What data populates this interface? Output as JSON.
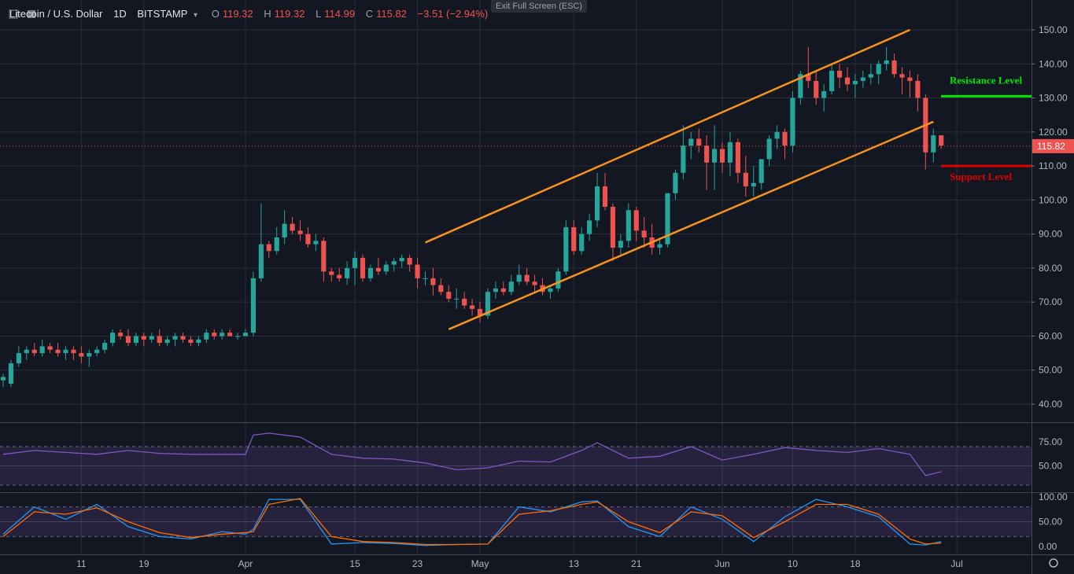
{
  "header": {
    "symbol": "Litecoin / U.S. Dollar",
    "interval": "1D",
    "exchange": "BITSTAMP",
    "open_label": "O",
    "open": "119.32",
    "high_label": "H",
    "high": "119.32",
    "low_label": "L",
    "low": "114.99",
    "close_label": "C",
    "close": "115.82",
    "change": "−3.51 (−2.94%)",
    "exit_fullscreen": "Exit Full Screen (ESC)"
  },
  "colors": {
    "background": "#131722",
    "up": "#26a69a",
    "down": "#ef5350",
    "channel": "#f7931a",
    "resistance": "#00e600",
    "support": "#e00000",
    "rsi": "#7e57c2",
    "stoch_k": "#2196f3",
    "stoch_d": "#ff6d00"
  },
  "chart_data": [
    {
      "type": "candlestick",
      "title": "",
      "price_axis": [
        "150.00",
        "140.00",
        "130.00",
        "120.00",
        "110.00",
        "100.00",
        "90.00",
        "80.00",
        "70.00",
        "60.00",
        "50.00",
        "40.00"
      ],
      "ylim": [
        32,
        155
      ],
      "last_price": "115.82",
      "x_labels": [
        "11",
        "19",
        "Apr",
        "15",
        "23",
        "May",
        "13",
        "21",
        "Jun",
        "10",
        "18",
        "Jul"
      ],
      "x_label_days": [
        10,
        18,
        31,
        45,
        53,
        61,
        73,
        81,
        92,
        101,
        109,
        122
      ],
      "day_range": [
        0,
        129
      ],
      "candles": [
        [
          0,
          47,
          49,
          45,
          48
        ],
        [
          1,
          46,
          53,
          45,
          52
        ],
        [
          2,
          52,
          57,
          51,
          55
        ],
        [
          3,
          55,
          57,
          53,
          56
        ],
        [
          4,
          56,
          58,
          54,
          55
        ],
        [
          5,
          55,
          59,
          54,
          57
        ],
        [
          6,
          57,
          58,
          55,
          56
        ],
        [
          7,
          56,
          58,
          54,
          55
        ],
        [
          8,
          55,
          57,
          53,
          56
        ],
        [
          9,
          56,
          57,
          53,
          55
        ],
        [
          10,
          55,
          57,
          52,
          54
        ],
        [
          11,
          54,
          56,
          51,
          55
        ],
        [
          12,
          55,
          57,
          54,
          56
        ],
        [
          13,
          56,
          59,
          55,
          58
        ],
        [
          14,
          58,
          62,
          57,
          61
        ],
        [
          15,
          61,
          62,
          59,
          60
        ],
        [
          16,
          60,
          62,
          57,
          58
        ],
        [
          17,
          58,
          61,
          57,
          60
        ],
        [
          18,
          60,
          61,
          57,
          59
        ],
        [
          19,
          59,
          61,
          58,
          60
        ],
        [
          20,
          60,
          62,
          57,
          58
        ],
        [
          21,
          58,
          60,
          57,
          59
        ],
        [
          22,
          59,
          61,
          57,
          60
        ],
        [
          23,
          60,
          61,
          58,
          59
        ],
        [
          24,
          59,
          60,
          57,
          58
        ],
        [
          25,
          58,
          60,
          57,
          59
        ],
        [
          26,
          59,
          62,
          58,
          61
        ],
        [
          27,
          61,
          62,
          59,
          60
        ],
        [
          28,
          60,
          62,
          59,
          61
        ],
        [
          29,
          61,
          62,
          60,
          60
        ],
        [
          30,
          60,
          61,
          59,
          60
        ],
        [
          31,
          60,
          62,
          60,
          61
        ],
        [
          32,
          61,
          79,
          60,
          77
        ],
        [
          33,
          77,
          99,
          76,
          87
        ],
        [
          34,
          87,
          88,
          83,
          85
        ],
        [
          35,
          85,
          92,
          84,
          89
        ],
        [
          36,
          89,
          97,
          87,
          93
        ],
        [
          37,
          93,
          95,
          90,
          91
        ],
        [
          38,
          91,
          94,
          88,
          90
        ],
        [
          39,
          90,
          92,
          86,
          87
        ],
        [
          40,
          87,
          90,
          85,
          88
        ],
        [
          41,
          88,
          89,
          76,
          79
        ],
        [
          42,
          79,
          80,
          76,
          78
        ],
        [
          43,
          78,
          80,
          76,
          77
        ],
        [
          44,
          77,
          82,
          75,
          80
        ],
        [
          45,
          80,
          85,
          75,
          83
        ],
        [
          46,
          83,
          84,
          76,
          77
        ],
        [
          47,
          77,
          81,
          76,
          80
        ],
        [
          48,
          80,
          83,
          78,
          79
        ],
        [
          49,
          79,
          82,
          78,
          81
        ],
        [
          50,
          81,
          83,
          79,
          82
        ],
        [
          51,
          82,
          84,
          80,
          83
        ],
        [
          52,
          83,
          84,
          79,
          81
        ],
        [
          53,
          81,
          83,
          74,
          77
        ],
        [
          54,
          77,
          79,
          75,
          77
        ],
        [
          55,
          77,
          80,
          72,
          75
        ],
        [
          56,
          75,
          77,
          72,
          73
        ],
        [
          57,
          73,
          75,
          70,
          71
        ],
        [
          58,
          71,
          74,
          68,
          71
        ],
        [
          59,
          71,
          73,
          68,
          69
        ],
        [
          60,
          69,
          71,
          66,
          68
        ],
        [
          61,
          68,
          70,
          64,
          66
        ],
        [
          62,
          66,
          74,
          65,
          73
        ],
        [
          63,
          73,
          76,
          71,
          74
        ],
        [
          64,
          74,
          76,
          72,
          73
        ],
        [
          65,
          73,
          78,
          72,
          76
        ],
        [
          66,
          76,
          81,
          75,
          78
        ],
        [
          67,
          78,
          80,
          75,
          76
        ],
        [
          68,
          76,
          78,
          73,
          75
        ],
        [
          69,
          75,
          77,
          72,
          73
        ],
        [
          70,
          73,
          75,
          71,
          74
        ],
        [
          71,
          74,
          80,
          73,
          79
        ],
        [
          72,
          79,
          94,
          78,
          92
        ],
        [
          73,
          92,
          94,
          84,
          85
        ],
        [
          74,
          85,
          92,
          84,
          90
        ],
        [
          75,
          90,
          96,
          88,
          94
        ],
        [
          76,
          94,
          108,
          92,
          104
        ],
        [
          77,
          104,
          108,
          97,
          98
        ],
        [
          78,
          98,
          99,
          82,
          86
        ],
        [
          79,
          86,
          90,
          84,
          88
        ],
        [
          80,
          88,
          99,
          86,
          97
        ],
        [
          81,
          97,
          98,
          88,
          91
        ],
        [
          82,
          91,
          95,
          86,
          89
        ],
        [
          83,
          89,
          93,
          84,
          86
        ],
        [
          84,
          86,
          89,
          84,
          87
        ],
        [
          85,
          87,
          101,
          86,
          102
        ],
        [
          86,
          102,
          109,
          100,
          108
        ],
        [
          87,
          108,
          122,
          106,
          116
        ],
        [
          88,
          116,
          120,
          112,
          118
        ],
        [
          89,
          118,
          121,
          114,
          116
        ],
        [
          90,
          116,
          119,
          103,
          111
        ],
        [
          91,
          111,
          122,
          103,
          115
        ],
        [
          92,
          115,
          117,
          108,
          111
        ],
        [
          93,
          111,
          120,
          107,
          117
        ],
        [
          94,
          117,
          118,
          105,
          108
        ],
        [
          95,
          108,
          113,
          101,
          104
        ],
        [
          96,
          104,
          110,
          101,
          105
        ],
        [
          97,
          105,
          112,
          103,
          112
        ],
        [
          98,
          112,
          119,
          110,
          118
        ],
        [
          99,
          118,
          122,
          115,
          120
        ],
        [
          100,
          120,
          121,
          112,
          116
        ],
        [
          101,
          116,
          132,
          114,
          130
        ],
        [
          102,
          130,
          138,
          128,
          137
        ],
        [
          103,
          137,
          145,
          133,
          135
        ],
        [
          104,
          135,
          138,
          128,
          130
        ],
        [
          105,
          130,
          134,
          126,
          132
        ],
        [
          106,
          132,
          140,
          131,
          138
        ],
        [
          107,
          138,
          140,
          133,
          136
        ],
        [
          108,
          136,
          139,
          132,
          134
        ],
        [
          109,
          134,
          137,
          130,
          135
        ],
        [
          110,
          135,
          138,
          133,
          136
        ],
        [
          111,
          136,
          140,
          134,
          137
        ],
        [
          112,
          137,
          141,
          134,
          140
        ],
        [
          113,
          140,
          145,
          138,
          141
        ],
        [
          114,
          141,
          143,
          136,
          137
        ],
        [
          115,
          137,
          139,
          131,
          136
        ],
        [
          116,
          136,
          138,
          130,
          135
        ],
        [
          117,
          135,
          137,
          126,
          130
        ],
        [
          118,
          130,
          131,
          109,
          114
        ],
        [
          119,
          114,
          121,
          111,
          119
        ],
        [
          120,
          119,
          119,
          115,
          116
        ]
      ],
      "annotations": [
        {
          "text": "Resistance Level",
          "price": 130.5,
          "day_range": [
            119,
            129
          ],
          "color": "#00e600"
        },
        {
          "text": "Support Level",
          "price": 110,
          "day_range": [
            119,
            129
          ],
          "color": "#e00000"
        }
      ],
      "channel": {
        "upper": [
          [
            54,
            87.5
          ],
          [
            116,
            150
          ]
        ],
        "lower": [
          [
            57,
            62
          ],
          [
            119,
            123
          ]
        ]
      }
    },
    {
      "type": "line",
      "title": "",
      "y_ticks": [
        "75.00",
        "50.00"
      ],
      "ylim": [
        20,
        90
      ],
      "bands": [
        30,
        50,
        70
      ],
      "series": [
        {
          "color": "#7e57c2",
          "x": [
            0,
            4,
            8,
            12,
            16,
            20,
            24,
            28,
            31,
            32,
            34,
            38,
            42,
            46,
            50,
            54,
            58,
            62,
            66,
            70,
            74,
            76,
            80,
            84,
            88,
            92,
            96,
            100,
            104,
            108,
            112,
            116,
            118,
            120
          ],
          "values": [
            62,
            66,
            64,
            62,
            66,
            63,
            62,
            62,
            62,
            82,
            84,
            80,
            62,
            58,
            57,
            53,
            46,
            48,
            55,
            54,
            66,
            74,
            58,
            60,
            70,
            56,
            62,
            69,
            66,
            64,
            68,
            62,
            40,
            44
          ]
        }
      ]
    },
    {
      "type": "line",
      "title": "",
      "y_ticks": [
        "100.00",
        "50.00",
        "0.00"
      ],
      "ylim": [
        -5,
        105
      ],
      "bands": [
        20,
        50,
        80
      ],
      "series": [
        {
          "color": "#2196f3",
          "x": [
            0,
            4,
            8,
            12,
            16,
            20,
            24,
            28,
            31,
            32,
            34,
            38,
            42,
            46,
            50,
            54,
            58,
            62,
            66,
            70,
            74,
            76,
            80,
            84,
            88,
            92,
            96,
            100,
            104,
            108,
            112,
            116,
            118,
            120
          ],
          "values": [
            25,
            80,
            55,
            85,
            40,
            20,
            15,
            30,
            25,
            35,
            95,
            95,
            5,
            8,
            6,
            2,
            4,
            5,
            80,
            70,
            90,
            92,
            40,
            20,
            80,
            55,
            10,
            60,
            95,
            80,
            60,
            5,
            3,
            10
          ]
        },
        {
          "color": "#ff6d00",
          "x": [
            0,
            4,
            8,
            12,
            16,
            20,
            24,
            28,
            31,
            32,
            34,
            38,
            42,
            46,
            50,
            54,
            58,
            62,
            66,
            70,
            74,
            76,
            80,
            84,
            88,
            92,
            96,
            100,
            104,
            108,
            112,
            116,
            118,
            120
          ],
          "values": [
            20,
            70,
            65,
            78,
            50,
            28,
            18,
            25,
            28,
            30,
            85,
            97,
            20,
            10,
            8,
            4,
            4,
            5,
            65,
            72,
            85,
            90,
            50,
            28,
            70,
            62,
            18,
            50,
            85,
            85,
            65,
            15,
            5,
            7
          ]
        }
      ]
    }
  ]
}
